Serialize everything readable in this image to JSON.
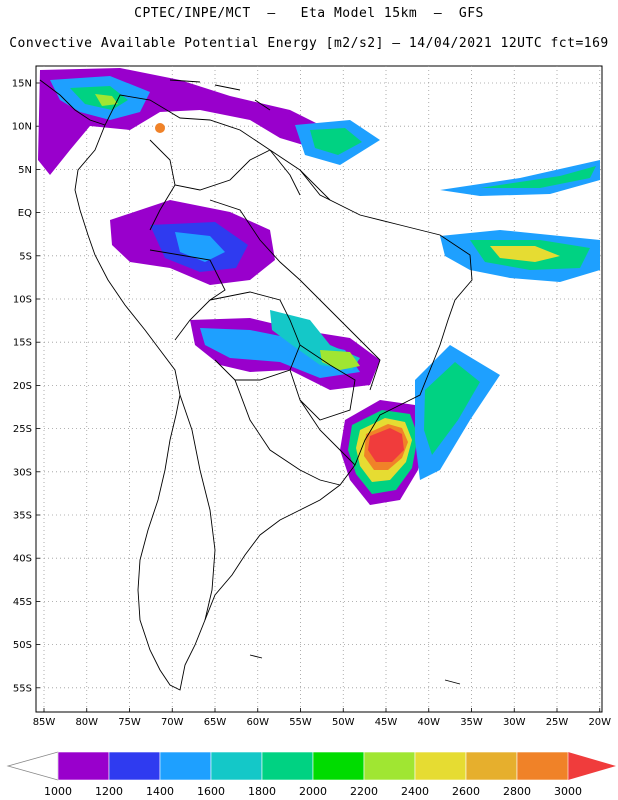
{
  "header": {
    "line1": "CPTEC/INPE/MCT  –   Eta Model 15km  –  GFS",
    "line2": "Convective Available Potential Energy [m2/s2] – 14/04/2021 12UTC fct=169"
  },
  "axes": {
    "lat_labels": [
      "15N",
      "10N",
      "5N",
      "EQ",
      "5S",
      "10S",
      "15S",
      "20S",
      "25S",
      "30S",
      "35S",
      "40S",
      "45S",
      "50S",
      "55S"
    ],
    "lon_labels": [
      "85W",
      "80W",
      "75W",
      "70W",
      "65W",
      "60W",
      "55W",
      "50W",
      "45W",
      "40W",
      "35W",
      "30W",
      "25W",
      "20W"
    ]
  },
  "colorbar": {
    "labels": [
      "1000",
      "1200",
      "1400",
      "1600",
      "1800",
      "2000",
      "2200",
      "2400",
      "2600",
      "2800",
      "3000"
    ],
    "colors": [
      "#9900cc",
      "#2f3bf0",
      "#1ea0ff",
      "#14c8c8",
      "#00d282",
      "#00dc00",
      "#a0e632",
      "#e6dc32",
      "#e6af2d",
      "#f08228",
      "#f03c3c"
    ]
  }
}
